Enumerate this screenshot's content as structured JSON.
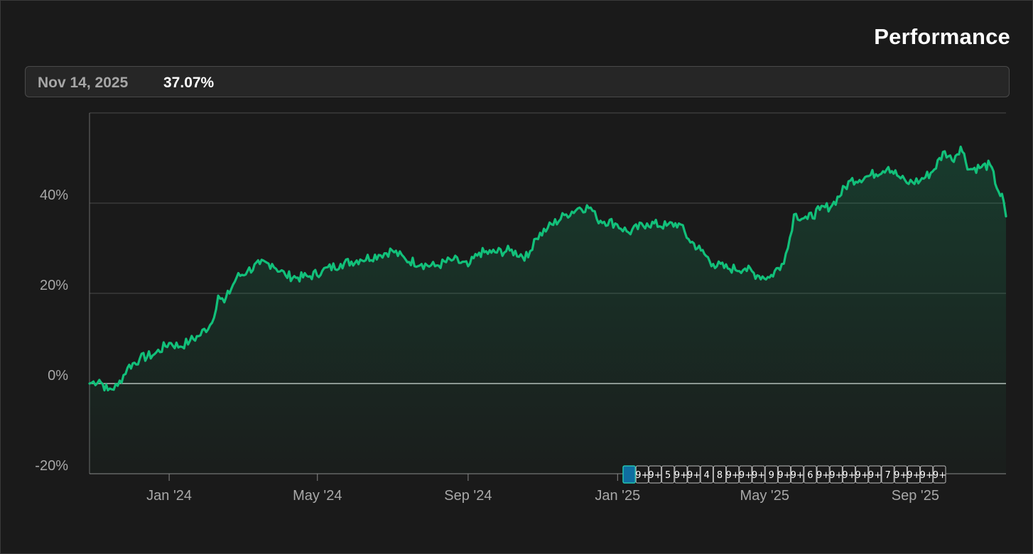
{
  "header": {
    "title": "Performance"
  },
  "tooltip": {
    "date": "Nov 14, 2025",
    "value": "37.07%"
  },
  "colors": {
    "background": "#1a1a1a",
    "line": "#12c07a",
    "grid": "#4a4a4a",
    "zero_line": "#bdbdbd",
    "marker_border": "#bdbdbd",
    "marker_active": "#0f6ea0"
  },
  "chart_data": {
    "type": "area",
    "title": "Performance",
    "xlabel": "",
    "ylabel": "",
    "ylim": [
      -20,
      60
    ],
    "y_ticks": [
      -20,
      0,
      20,
      40
    ],
    "y_tick_labels": [
      "-20%",
      "0%",
      "20%",
      "40%"
    ],
    "x_ticks": [
      "2024-01-01",
      "2024-05-01",
      "2024-09-01",
      "2025-01-01",
      "2025-05-01",
      "2025-09-01"
    ],
    "x_tick_labels": [
      "Jan '24",
      "May '24",
      "Sep '24",
      "Jan '25",
      "May '25",
      "Sep '25"
    ],
    "x_range": [
      "2023-10-28",
      "2025-11-14"
    ],
    "grid": true,
    "series": [
      {
        "points": [
          [
            "2023-10-28",
            0.0
          ],
          [
            "2023-11-05",
            0.8
          ],
          [
            "2023-11-12",
            -1.5
          ],
          [
            "2023-11-20",
            -0.5
          ],
          [
            "2023-11-28",
            3.5
          ],
          [
            "2023-12-08",
            5.5
          ],
          [
            "2023-12-20",
            6.5
          ],
          [
            "2024-01-01",
            9.0
          ],
          [
            "2024-01-10",
            8.2
          ],
          [
            "2024-01-18",
            9.5
          ],
          [
            "2024-01-25",
            10.5
          ],
          [
            "2024-02-05",
            13.5
          ],
          [
            "2024-02-10",
            19.5
          ],
          [
            "2024-02-15",
            18.0
          ],
          [
            "2024-02-25",
            23.5
          ],
          [
            "2024-03-05",
            25.0
          ],
          [
            "2024-03-15",
            26.5
          ],
          [
            "2024-03-25",
            26.5
          ],
          [
            "2024-04-05",
            24.0
          ],
          [
            "2024-04-15",
            23.5
          ],
          [
            "2024-04-25",
            23.8
          ],
          [
            "2024-05-05",
            25.0
          ],
          [
            "2024-05-20",
            26.5
          ],
          [
            "2024-06-05",
            27.5
          ],
          [
            "2024-06-20",
            28.5
          ],
          [
            "2024-07-01",
            29.5
          ],
          [
            "2024-07-12",
            27.5
          ],
          [
            "2024-07-25",
            26.5
          ],
          [
            "2024-08-05",
            26.0
          ],
          [
            "2024-08-20",
            27.5
          ],
          [
            "2024-09-01",
            26.0
          ],
          [
            "2024-09-10",
            29.0
          ],
          [
            "2024-09-20",
            29.0
          ],
          [
            "2024-10-05",
            29.5
          ],
          [
            "2024-10-20",
            28.0
          ],
          [
            "2024-10-25",
            32.0
          ],
          [
            "2024-11-05",
            34.5
          ],
          [
            "2024-11-20",
            37.5
          ],
          [
            "2024-12-01",
            39.0
          ],
          [
            "2024-12-10",
            39.0
          ],
          [
            "2024-12-15",
            36.5
          ],
          [
            "2024-12-30",
            35.5
          ],
          [
            "2025-01-10",
            33.5
          ],
          [
            "2025-01-25",
            35.5
          ],
          [
            "2025-02-10",
            35.0
          ],
          [
            "2025-02-20",
            35.5
          ],
          [
            "2025-02-28",
            32.0
          ],
          [
            "2025-03-10",
            29.5
          ],
          [
            "2025-03-20",
            26.5
          ],
          [
            "2025-04-01",
            25.5
          ],
          [
            "2025-04-15",
            25.5
          ],
          [
            "2025-04-25",
            24.0
          ],
          [
            "2025-05-05",
            23.5
          ],
          [
            "2025-05-15",
            26.5
          ],
          [
            "2025-05-20",
            30.0
          ],
          [
            "2025-05-25",
            37.5
          ],
          [
            "2025-06-05",
            36.5
          ],
          [
            "2025-06-15",
            38.5
          ],
          [
            "2025-06-25",
            39.5
          ],
          [
            "2025-07-10",
            45.0
          ],
          [
            "2025-07-25",
            46.0
          ],
          [
            "2025-08-10",
            48.0
          ],
          [
            "2025-08-20",
            45.5
          ],
          [
            "2025-08-25",
            44.5
          ],
          [
            "2025-09-05",
            45.0
          ],
          [
            "2025-09-15",
            47.0
          ],
          [
            "2025-09-25",
            51.5
          ],
          [
            "2025-10-01",
            49.5
          ],
          [
            "2025-10-08",
            52.5
          ],
          [
            "2025-10-15",
            47.5
          ],
          [
            "2025-10-25",
            48.0
          ],
          [
            "2025-11-01",
            48.5
          ],
          [
            "2025-11-08",
            42.5
          ],
          [
            "2025-11-12",
            40.5
          ],
          [
            "2025-11-14",
            37.07
          ]
        ]
      }
    ],
    "event_markers": [
      "",
      "9+",
      "9+",
      "5",
      "9+",
      "9+",
      "4",
      "8",
      "9+",
      "9+",
      "9+",
      "9",
      "9+",
      "9+",
      "6",
      "9+",
      "9+",
      "9+",
      "9+",
      "9+",
      "7",
      "9+",
      "9+",
      "9+",
      "9+"
    ]
  }
}
